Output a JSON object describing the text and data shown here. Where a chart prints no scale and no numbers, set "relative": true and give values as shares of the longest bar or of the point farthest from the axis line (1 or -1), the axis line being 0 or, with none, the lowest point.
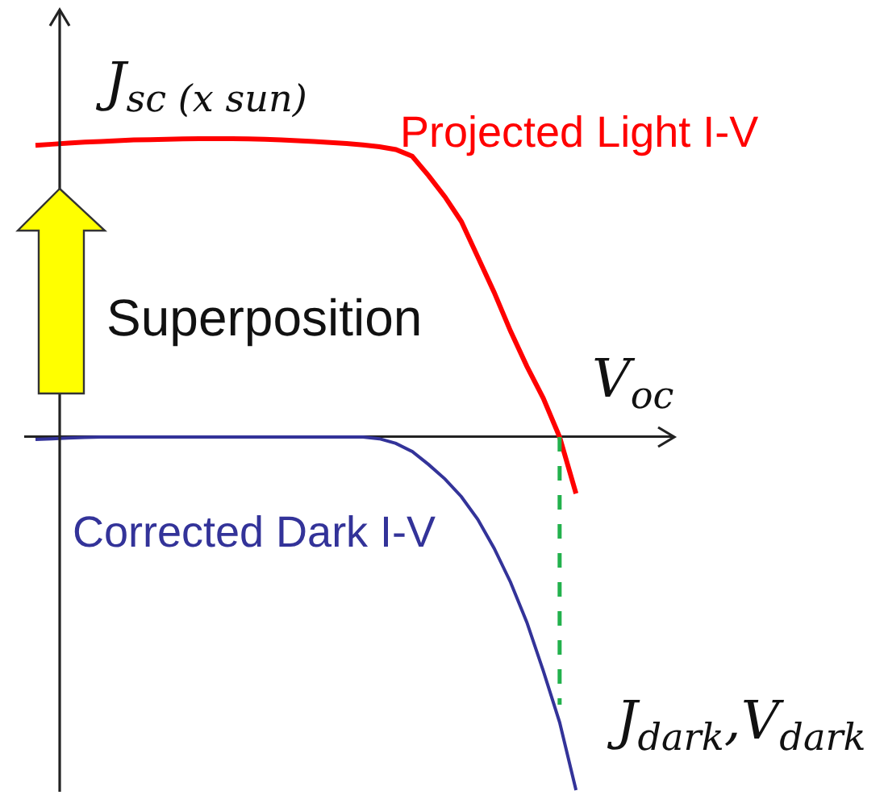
{
  "chart_data": {
    "type": "line",
    "relative": true,
    "categories": [
      null,
      null,
      null,
      null,
      null,
      null,
      null,
      null,
      null,
      null,
      null,
      null,
      null,
      null,
      null,
      null,
      null,
      null,
      null,
      null,
      null,
      null,
      null,
      null,
      null,
      null,
      null,
      null,
      null,
      null,
      null,
      null,
      null,
      null,
      null,
      null,
      null,
      null,
      null,
      null
    ],
    "series": [
      {
        "name": "Projected Light I-V",
        "color": "#ff0000",
        "values": [
          0.826,
          0.829,
          0.832,
          0.835,
          0.837,
          0.839,
          0.841,
          0.842,
          0.843,
          0.844,
          0.845,
          0.845,
          0.845,
          0.844,
          0.843,
          0.841,
          0.839,
          0.837,
          0.834,
          0.831,
          0.827,
          0.822,
          0.814,
          0.795,
          0.74,
          0.68,
          0.61,
          0.51,
          0.41,
          0.3,
          0.2,
          0.11,
          0,
          -0.16,
          null,
          null,
          null,
          null,
          null,
          null
        ]
      },
      {
        "name": "Corrected Dark I-V",
        "color": "#333399",
        "values": [
          -0.007,
          -0.005,
          -0.003,
          -0.001,
          0,
          0,
          0,
          0,
          0,
          0,
          0,
          0,
          0,
          0,
          0,
          0,
          0,
          0,
          0,
          0,
          0,
          -0.005,
          -0.018,
          -0.041,
          -0.078,
          -0.119,
          -0.169,
          -0.233,
          -0.315,
          -0.411,
          -0.525,
          -0.662,
          -0.808,
          -1,
          null,
          null,
          null,
          null,
          null,
          null
        ]
      }
    ],
    "annotations": [
      "J$_{sc (x sun)}$",
      "Superposition",
      "V$_{oc}$",
      "J$_{dark}$,V$_{dark}$"
    ]
  }
}
